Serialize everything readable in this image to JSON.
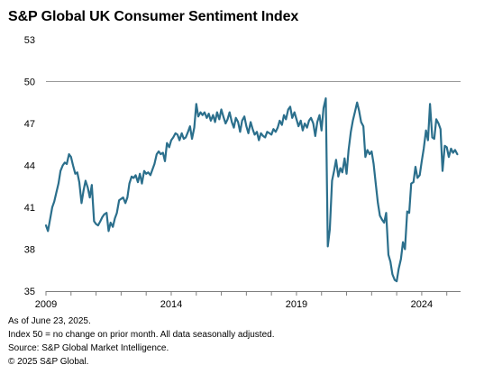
{
  "chart_data": {
    "type": "line",
    "title": "S&P Global UK Consumer Sentiment Index",
    "xlabel": "",
    "ylabel": "",
    "ylim": [
      35,
      53
    ],
    "xlim": [
      2009.0,
      2025.55
    ],
    "y_ticks": [
      35,
      38,
      41,
      44,
      47,
      50,
      53
    ],
    "x_ticks": [
      2009,
      2014,
      2019,
      2024
    ],
    "reference_line": 50,
    "grid": false,
    "legend": "none",
    "line_color": "#2b6f8c",
    "reference_line_color": "#9a9a9a",
    "series": [
      {
        "name": "",
        "points": [
          [
            2009.0,
            39.7
          ],
          [
            2009.08,
            39.3
          ],
          [
            2009.17,
            40.2
          ],
          [
            2009.25,
            41.0
          ],
          [
            2009.33,
            41.4
          ],
          [
            2009.42,
            42.1
          ],
          [
            2009.5,
            42.7
          ],
          [
            2009.58,
            43.6
          ],
          [
            2009.67,
            44.0
          ],
          [
            2009.75,
            44.2
          ],
          [
            2009.83,
            44.1
          ],
          [
            2009.92,
            44.8
          ],
          [
            2010.0,
            44.6
          ],
          [
            2010.08,
            44.0
          ],
          [
            2010.17,
            43.4
          ],
          [
            2010.25,
            43.5
          ],
          [
            2010.33,
            42.8
          ],
          [
            2010.42,
            41.3
          ],
          [
            2010.5,
            42.2
          ],
          [
            2010.58,
            42.9
          ],
          [
            2010.67,
            42.4
          ],
          [
            2010.75,
            41.7
          ],
          [
            2010.83,
            42.6
          ],
          [
            2010.92,
            40.0
          ],
          [
            2011.0,
            39.8
          ],
          [
            2011.08,
            39.7
          ],
          [
            2011.17,
            40.0
          ],
          [
            2011.25,
            40.3
          ],
          [
            2011.33,
            40.5
          ],
          [
            2011.42,
            40.6
          ],
          [
            2011.5,
            39.3
          ],
          [
            2011.58,
            39.9
          ],
          [
            2011.67,
            39.6
          ],
          [
            2011.75,
            40.2
          ],
          [
            2011.83,
            40.6
          ],
          [
            2011.92,
            41.5
          ],
          [
            2012.0,
            41.6
          ],
          [
            2012.08,
            41.7
          ],
          [
            2012.17,
            41.3
          ],
          [
            2012.25,
            41.7
          ],
          [
            2012.33,
            42.7
          ],
          [
            2012.42,
            43.2
          ],
          [
            2012.5,
            43.1
          ],
          [
            2012.58,
            43.3
          ],
          [
            2012.67,
            42.8
          ],
          [
            2012.75,
            43.4
          ],
          [
            2012.83,
            42.7
          ],
          [
            2012.92,
            43.6
          ],
          [
            2013.0,
            43.4
          ],
          [
            2013.08,
            43.5
          ],
          [
            2013.17,
            43.3
          ],
          [
            2013.25,
            43.7
          ],
          [
            2013.33,
            44.1
          ],
          [
            2013.42,
            44.8
          ],
          [
            2013.5,
            45.0
          ],
          [
            2013.58,
            44.8
          ],
          [
            2013.67,
            44.9
          ],
          [
            2013.75,
            44.3
          ],
          [
            2013.83,
            45.6
          ],
          [
            2013.92,
            45.3
          ],
          [
            2014.0,
            45.8
          ],
          [
            2014.08,
            46.0
          ],
          [
            2014.17,
            46.3
          ],
          [
            2014.25,
            46.2
          ],
          [
            2014.33,
            45.8
          ],
          [
            2014.42,
            46.3
          ],
          [
            2014.5,
            45.9
          ],
          [
            2014.58,
            46.0
          ],
          [
            2014.67,
            46.4
          ],
          [
            2014.75,
            46.8
          ],
          [
            2014.83,
            45.9
          ],
          [
            2014.92,
            46.7
          ],
          [
            2015.0,
            48.4
          ],
          [
            2015.08,
            47.5
          ],
          [
            2015.17,
            47.8
          ],
          [
            2015.25,
            47.6
          ],
          [
            2015.33,
            47.8
          ],
          [
            2015.42,
            47.4
          ],
          [
            2015.5,
            47.7
          ],
          [
            2015.58,
            47.2
          ],
          [
            2015.67,
            47.6
          ],
          [
            2015.75,
            47.1
          ],
          [
            2015.83,
            47.8
          ],
          [
            2015.92,
            47.3
          ],
          [
            2016.0,
            48.0
          ],
          [
            2016.08,
            47.5
          ],
          [
            2016.17,
            47.0
          ],
          [
            2016.25,
            47.3
          ],
          [
            2016.33,
            47.8
          ],
          [
            2016.42,
            47.1
          ],
          [
            2016.5,
            46.7
          ],
          [
            2016.58,
            47.4
          ],
          [
            2016.67,
            47.1
          ],
          [
            2016.75,
            46.4
          ],
          [
            2016.83,
            47.2
          ],
          [
            2016.92,
            47.5
          ],
          [
            2017.0,
            46.8
          ],
          [
            2017.08,
            46.3
          ],
          [
            2017.17,
            47.1
          ],
          [
            2017.25,
            46.6
          ],
          [
            2017.33,
            46.2
          ],
          [
            2017.42,
            46.4
          ],
          [
            2017.5,
            45.8
          ],
          [
            2017.58,
            46.3
          ],
          [
            2017.67,
            46.1
          ],
          [
            2017.75,
            46.0
          ],
          [
            2017.83,
            46.4
          ],
          [
            2017.92,
            46.3
          ],
          [
            2018.0,
            46.2
          ],
          [
            2018.08,
            46.6
          ],
          [
            2018.17,
            46.4
          ],
          [
            2018.25,
            46.7
          ],
          [
            2018.33,
            47.2
          ],
          [
            2018.42,
            46.9
          ],
          [
            2018.5,
            47.6
          ],
          [
            2018.58,
            47.3
          ],
          [
            2018.67,
            48.0
          ],
          [
            2018.75,
            48.2
          ],
          [
            2018.83,
            47.4
          ],
          [
            2018.92,
            47.8
          ],
          [
            2019.0,
            47.3
          ],
          [
            2019.08,
            46.8
          ],
          [
            2019.17,
            47.2
          ],
          [
            2019.25,
            46.5
          ],
          [
            2019.33,
            47.0
          ],
          [
            2019.42,
            46.7
          ],
          [
            2019.5,
            47.2
          ],
          [
            2019.58,
            47.4
          ],
          [
            2019.67,
            47.0
          ],
          [
            2019.75,
            46.1
          ],
          [
            2019.83,
            47.1
          ],
          [
            2019.92,
            47.6
          ],
          [
            2020.0,
            46.5
          ],
          [
            2020.08,
            48.1
          ],
          [
            2020.17,
            48.8
          ],
          [
            2020.25,
            38.2
          ],
          [
            2020.33,
            39.4
          ],
          [
            2020.42,
            42.9
          ],
          [
            2020.5,
            43.6
          ],
          [
            2020.58,
            44.4
          ],
          [
            2020.67,
            43.2
          ],
          [
            2020.75,
            43.8
          ],
          [
            2020.83,
            43.5
          ],
          [
            2020.92,
            44.5
          ],
          [
            2021.0,
            43.4
          ],
          [
            2021.08,
            45.1
          ],
          [
            2021.17,
            46.4
          ],
          [
            2021.25,
            47.2
          ],
          [
            2021.33,
            47.8
          ],
          [
            2021.42,
            48.5
          ],
          [
            2021.5,
            47.9
          ],
          [
            2021.58,
            47.1
          ],
          [
            2021.67,
            46.8
          ],
          [
            2021.75,
            44.6
          ],
          [
            2021.83,
            45.1
          ],
          [
            2021.92,
            44.8
          ],
          [
            2022.0,
            45.0
          ],
          [
            2022.08,
            44.1
          ],
          [
            2022.17,
            42.6
          ],
          [
            2022.25,
            41.3
          ],
          [
            2022.33,
            40.4
          ],
          [
            2022.42,
            40.1
          ],
          [
            2022.5,
            39.9
          ],
          [
            2022.58,
            40.6
          ],
          [
            2022.67,
            37.6
          ],
          [
            2022.75,
            37.1
          ],
          [
            2022.83,
            36.2
          ],
          [
            2022.92,
            35.8
          ],
          [
            2023.0,
            35.7
          ],
          [
            2023.08,
            36.6
          ],
          [
            2023.17,
            37.3
          ],
          [
            2023.25,
            38.5
          ],
          [
            2023.33,
            38.0
          ],
          [
            2023.42,
            40.7
          ],
          [
            2023.5,
            40.6
          ],
          [
            2023.58,
            42.7
          ],
          [
            2023.67,
            42.8
          ],
          [
            2023.75,
            43.9
          ],
          [
            2023.83,
            43.1
          ],
          [
            2023.92,
            43.3
          ],
          [
            2024.0,
            44.3
          ],
          [
            2024.08,
            45.2
          ],
          [
            2024.17,
            46.5
          ],
          [
            2024.25,
            45.8
          ],
          [
            2024.33,
            48.4
          ],
          [
            2024.42,
            46.0
          ],
          [
            2024.5,
            45.9
          ],
          [
            2024.58,
            47.3
          ],
          [
            2024.67,
            47.0
          ],
          [
            2024.75,
            46.6
          ],
          [
            2024.83,
            43.6
          ],
          [
            2024.92,
            45.4
          ],
          [
            2025.0,
            45.3
          ],
          [
            2025.08,
            44.6
          ],
          [
            2025.17,
            45.2
          ],
          [
            2025.25,
            44.9
          ],
          [
            2025.33,
            45.1
          ],
          [
            2025.42,
            44.8
          ]
        ]
      }
    ]
  },
  "notes": {
    "as_of": "As of June 23, 2025.",
    "index_note": "Index 50 = no change on prior month. All data seasonally adjusted.",
    "source": "Source: S&P Global Market Intelligence.",
    "copyright": "© 2025 S&P Global."
  }
}
